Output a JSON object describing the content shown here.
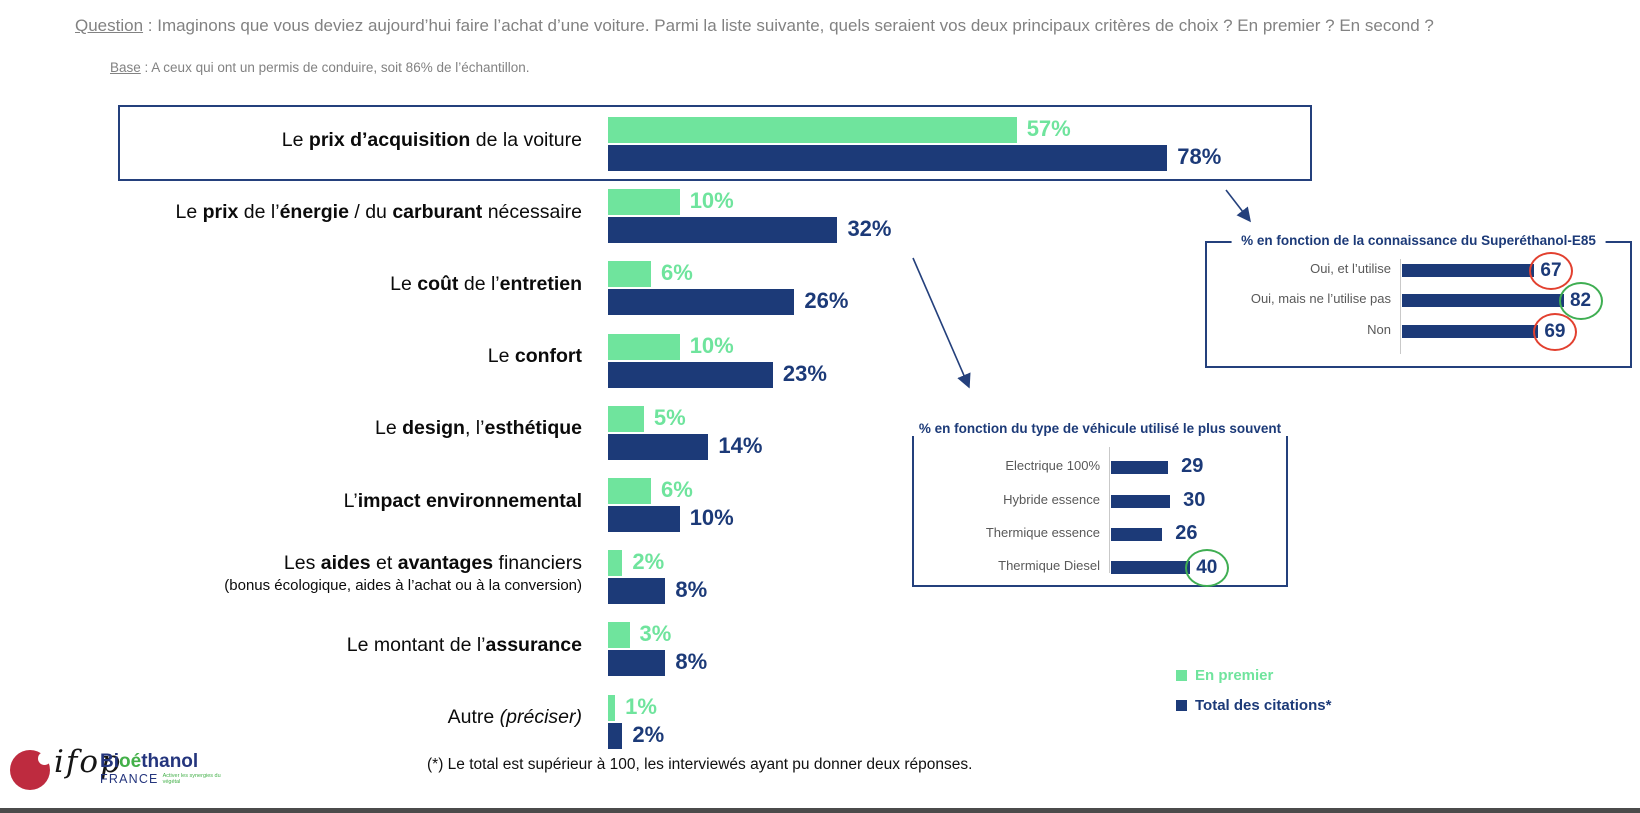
{
  "question": {
    "label": "Question",
    "text": " : Imaginons que vous deviez aujourd’hui faire l’achat d’une voiture. Parmi la liste suivante, quels seraient vos deux principaux critères de choix ? En premier ? En second ?"
  },
  "base": {
    "label": "Base",
    "text": " : A ceux qui ont un permis de conduire, soit 86% de l’échantillon."
  },
  "colors": {
    "green": "#6FE49D",
    "navy": "#1C3A78",
    "box_border": "#24407C",
    "red_circle": "#E2402F",
    "green_circle": "#3FAE52",
    "gray_text": "#828282"
  },
  "chart_data": [
    {
      "type": "bar",
      "orientation": "horizontal",
      "unit": "%",
      "value_range": [
        0,
        100
      ],
      "categories": [
        "Le prix d’acquisition de la voiture",
        "Le prix de l’énergie / du carburant nécessaire",
        "Le coût de l’entretien",
        "Le confort",
        "Le design, l’esthétique",
        "L’impact environnemental",
        "Les aides et avantages financiers",
        "Le montant de l’assurance",
        "Autre (préciser)"
      ],
      "category_rich": [
        [
          [
            "Le ",
            ""
          ],
          [
            "prix d’acquisition",
            "b"
          ],
          [
            " de la voiture",
            ""
          ]
        ],
        [
          [
            "Le ",
            ""
          ],
          [
            "prix",
            "b"
          ],
          [
            " de l’",
            ""
          ],
          [
            "énergie",
            "b"
          ],
          [
            " / du ",
            ""
          ],
          [
            "carburant",
            "b"
          ],
          [
            " nécessaire",
            ""
          ]
        ],
        [
          [
            "Le ",
            ""
          ],
          [
            "coût",
            "b"
          ],
          [
            " de l’",
            ""
          ],
          [
            "entretien",
            "b"
          ]
        ],
        [
          [
            "Le ",
            ""
          ],
          [
            "confort",
            "b"
          ]
        ],
        [
          [
            "Le ",
            ""
          ],
          [
            "design",
            "b"
          ],
          [
            ", l’",
            ""
          ],
          [
            "esthétique",
            "b"
          ]
        ],
        [
          [
            "L’",
            ""
          ],
          [
            "impact environnemental",
            "b"
          ]
        ],
        [
          [
            "Les ",
            ""
          ],
          [
            "aides",
            "b"
          ],
          [
            " et ",
            ""
          ],
          [
            "avantages",
            "b"
          ],
          [
            " financiers",
            ""
          ]
        ],
        [
          [
            "Le montant de l’",
            ""
          ],
          [
            "assurance",
            "b"
          ]
        ],
        [
          [
            "Autre ",
            ""
          ],
          [
            "(préciser)",
            "i"
          ]
        ]
      ],
      "category_subnotes": {
        "6": "(bonus écologique, aides à l’achat ou à la conversion)"
      },
      "series": [
        {
          "name": "En premier",
          "color": "#6FE49D",
          "values": [
            57,
            10,
            6,
            10,
            5,
            6,
            2,
            3,
            1
          ]
        },
        {
          "name": "Total des citations*",
          "color": "#1C3A78",
          "values": [
            78,
            32,
            26,
            23,
            14,
            10,
            8,
            8,
            2
          ]
        }
      ],
      "highlighted_row": 0
    },
    {
      "type": "bar",
      "orientation": "horizontal",
      "title": "% en fonction de la connaissance du Superéthanol-E85",
      "categories": [
        "Oui, et l’utilise",
        "Oui, mais ne l’utilise pas",
        "Non"
      ],
      "values": [
        67,
        82,
        69
      ],
      "circle_colors": [
        "#E2402F",
        "#3FAE52",
        "#E2402F"
      ]
    },
    {
      "type": "bar",
      "orientation": "horizontal",
      "title": "% en fonction du type de véhicule utilisé le plus souvent",
      "categories": [
        "Electrique 100%",
        "Hybride essence",
        "Thermique essence",
        "Thermique Diesel"
      ],
      "values": [
        29,
        30,
        26,
        40
      ],
      "circle_colors": [
        null,
        null,
        null,
        "#3FAE52"
      ]
    }
  ],
  "legend": {
    "items": [
      {
        "label": "En premier",
        "color": "#6FE49D"
      },
      {
        "label": "Total des citations*",
        "color": "#1C3A78"
      }
    ]
  },
  "footnote": "(*) Le total est supérieur à 100, les interviewés ayant pu donner deux réponses.",
  "logos": {
    "ifop": "ifop",
    "bioethanol": {
      "word_parts": [
        [
          "Bi",
          "blue"
        ],
        [
          "oé",
          "green"
        ],
        [
          "thanol",
          "blue"
        ]
      ],
      "country": "FRANCE",
      "tagline": "Activer les synergies du végétal",
      "blue": "#24357D",
      "green": "#43B049"
    }
  }
}
